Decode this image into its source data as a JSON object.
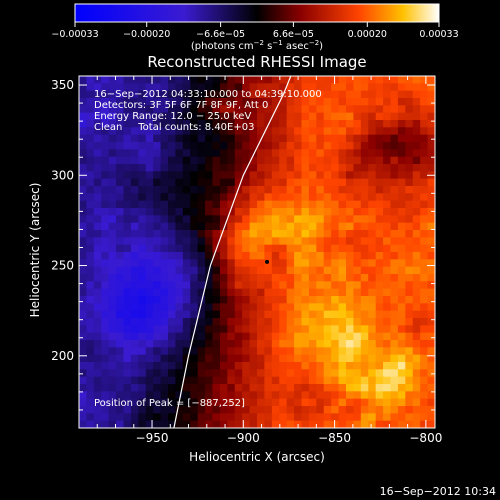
{
  "chart_data": {
    "type": "heatmap",
    "title": "Reconstructed RHESSI Image",
    "xlabel": "Heliocentric X (arcsec)",
    "ylabel": "Heliocentric Y (arcsec)",
    "xlim": [
      -990,
      -795
    ],
    "ylim": [
      160,
      355
    ],
    "x_ticks": [
      -950,
      -900,
      -850,
      -800
    ],
    "x_tick_labels": [
      "−950",
      "−900",
      "−850",
      "−800"
    ],
    "y_ticks": [
      200,
      250,
      300,
      350
    ],
    "y_tick_labels": [
      "200",
      "250",
      "300",
      "350"
    ],
    "colorbar": {
      "range": [
        -0.00033,
        0.00033
      ],
      "ticks": [
        -0.00033,
        -0.0002,
        -6.6e-05,
        6.6e-05,
        0.0002,
        0.00033
      ],
      "tick_labels": [
        "−0.00033",
        "−0.00020",
        "−6.6e−05",
        "6.6e−05",
        "0.00020",
        "0.00033"
      ],
      "units_text": "(photons cm",
      "units_exp1": "−2",
      "units_mid": " s",
      "units_exp2": "−1",
      "units_mid2": " asec",
      "units_exp3": "−2",
      "units_end": ")"
    },
    "annotations": [
      "16−Sep−2012 04:33:10.000 to 04:39:10.000",
      "Detectors: 3F 5F 6F 7F 8F 9F, Att 0",
      "Energy Range: 12.0 − 25.0 keV",
      "Clean     Total counts: 8.40E+03"
    ],
    "peak_label": "Position of Peak = [−887,252]",
    "peak": [
      -887,
      252
    ],
    "footer_timestamp": "16−Sep−2012 10:34",
    "limb_curve": [
      [
        -938,
        160
      ],
      [
        -930,
        200
      ],
      [
        -918,
        250
      ],
      [
        -900,
        300
      ],
      [
        -878,
        345
      ],
      [
        -874,
        355
      ]
    ],
    "legend_position": "none",
    "grid": false
  }
}
